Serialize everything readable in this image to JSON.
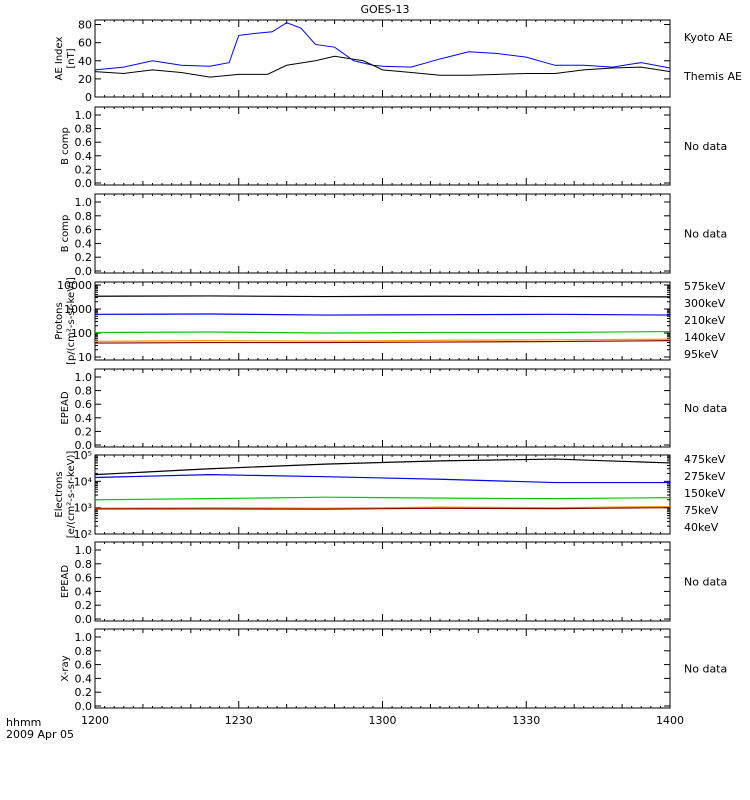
{
  "title": "GOES-13",
  "footer": {
    "time_label": "hhmm",
    "date_label": "2009 Apr 05"
  },
  "x_axis": {
    "ticks": [
      "1200",
      "1230",
      "1300",
      "1330",
      "1400"
    ]
  },
  "panels": [
    {
      "id": "ae",
      "ylabel": [
        "AE Index",
        "[nT]"
      ],
      "yticks": [
        "0",
        "20",
        "40",
        "60",
        "80"
      ],
      "ylim": [
        0,
        85
      ],
      "legend": [
        {
          "label": "Kyoto AE",
          "color": "#0000ff"
        },
        {
          "label": "Themis AE",
          "color": "#000000"
        }
      ],
      "series": [
        {
          "name": "Kyoto AE",
          "color": "#0000ff"
        },
        {
          "name": "Themis AE",
          "color": "#000000"
        }
      ]
    },
    {
      "id": "b1",
      "ylabel": [
        "B comp"
      ],
      "yticks": [
        "0.0",
        "0.2",
        "0.4",
        "0.6",
        "0.8",
        "1.0"
      ],
      "status": "No data"
    },
    {
      "id": "b2",
      "ylabel": [
        "B comp"
      ],
      "yticks": [
        "0.0",
        "0.2",
        "0.4",
        "0.6",
        "0.8",
        "1.0"
      ],
      "status": "No data"
    },
    {
      "id": "protons",
      "ylabel": [
        "Protons",
        "[p/(cm²-s-sr-keV)]"
      ],
      "yticks": [
        "10",
        "100",
        "1000",
        "10000"
      ],
      "log": true,
      "ylim": [
        10,
        10000
      ],
      "legend": [
        {
          "label": "575keV",
          "color": "#8b0000"
        },
        {
          "label": "300keV",
          "color": "#ff9900"
        },
        {
          "label": "210keV",
          "color": "#00cc00"
        },
        {
          "label": "140keV",
          "color": "#0000ff"
        },
        {
          "label": "95keV",
          "color": "#000000"
        }
      ]
    },
    {
      "id": "epead1",
      "ylabel": [
        "EPEAD"
      ],
      "yticks": [
        "0.0",
        "0.2",
        "0.4",
        "0.6",
        "0.8",
        "1.0"
      ],
      "status": "No data"
    },
    {
      "id": "electrons",
      "ylabel": [
        "Electrons",
        "[e/(cm²-s-sr-keV)]"
      ],
      "yticks": [
        "10²",
        "10³",
        "10⁴",
        "10⁵"
      ],
      "log": true,
      "ylim": [
        100,
        100000
      ],
      "legend": [
        {
          "label": "475keV",
          "color": "#8b0000"
        },
        {
          "label": "275keV",
          "color": "#ff9900"
        },
        {
          "label": "150keV",
          "color": "#00cc00"
        },
        {
          "label": "75keV",
          "color": "#0000ff"
        },
        {
          "label": "40keV",
          "color": "#000000"
        }
      ]
    },
    {
      "id": "epead2",
      "ylabel": [
        "EPEAD"
      ],
      "yticks": [
        "0.0",
        "0.2",
        "0.4",
        "0.6",
        "0.8",
        "1.0"
      ],
      "status": "No data"
    },
    {
      "id": "xray",
      "ylabel": [
        "X-ray"
      ],
      "yticks": [
        "0.0",
        "0.2",
        "0.4",
        "0.6",
        "0.8",
        "1.0"
      ],
      "status": "No data"
    }
  ],
  "chart_data": {
    "type": "line",
    "title": "GOES-13",
    "x_units": "hhmm",
    "xlim": [
      "1200",
      "1400"
    ],
    "ae": {
      "ylim": [
        0,
        85
      ],
      "series": [
        {
          "name": "Kyoto AE",
          "x": [
            "1200",
            "1206",
            "1212",
            "1218",
            "1224",
            "1228",
            "1230",
            "1233",
            "1237",
            "1240",
            "1243",
            "1246",
            "1250",
            "1254",
            "1258",
            "1300",
            "1306",
            "1312",
            "1318",
            "1324",
            "1330",
            "1336",
            "1342",
            "1348",
            "1354",
            "1400"
          ],
          "values": [
            30,
            33,
            40,
            35,
            34,
            38,
            68,
            70,
            72,
            82,
            76,
            58,
            55,
            40,
            35,
            34,
            33,
            42,
            50,
            48,
            44,
            35,
            35,
            33,
            38,
            32
          ]
        },
        {
          "name": "Themis AE",
          "x": [
            "1200",
            "1206",
            "1212",
            "1218",
            "1224",
            "1230",
            "1236",
            "1240",
            "1246",
            "1250",
            "1256",
            "1300",
            "1306",
            "1312",
            "1318",
            "1324",
            "1330",
            "1336",
            "1342",
            "1348",
            "1354",
            "1400"
          ],
          "values": [
            28,
            26,
            30,
            27,
            22,
            25,
            25,
            35,
            40,
            45,
            40,
            30,
            27,
            24,
            24,
            25,
            26,
            26,
            30,
            32,
            33,
            28
          ]
        }
      ]
    },
    "protons": {
      "log": true,
      "ylim": [
        10,
        10000
      ],
      "series": [
        {
          "name": "95keV",
          "values": [
            3400,
            3500,
            3300,
            3400,
            3300,
            3200
          ]
        },
        {
          "name": "140keV",
          "values": [
            600,
            620,
            560,
            580,
            600,
            560
          ]
        },
        {
          "name": "210keV",
          "values": [
            105,
            110,
            100,
            105,
            105,
            115
          ]
        },
        {
          "name": "300keV",
          "values": [
            45,
            48,
            46,
            50,
            52,
            55
          ]
        },
        {
          "name": "575keV",
          "values": [
            38,
            40,
            40,
            42,
            44,
            48
          ]
        }
      ]
    },
    "electrons": {
      "log": true,
      "ylim": [
        100,
        100000
      ],
      "series": [
        {
          "name": "40keV",
          "values": [
            18000,
            30000,
            45000,
            60000,
            70000,
            50000
          ]
        },
        {
          "name": "75keV",
          "values": [
            14000,
            18000,
            15000,
            12000,
            9000,
            9000
          ]
        },
        {
          "name": "150keV",
          "values": [
            2000,
            2200,
            2500,
            2300,
            2200,
            2400
          ]
        },
        {
          "name": "275keV",
          "values": [
            950,
            1000,
            950,
            1050,
            1000,
            1100
          ]
        },
        {
          "name": "475keV",
          "values": [
            900,
            900,
            880,
            950,
            920,
            1000
          ]
        }
      ]
    }
  }
}
